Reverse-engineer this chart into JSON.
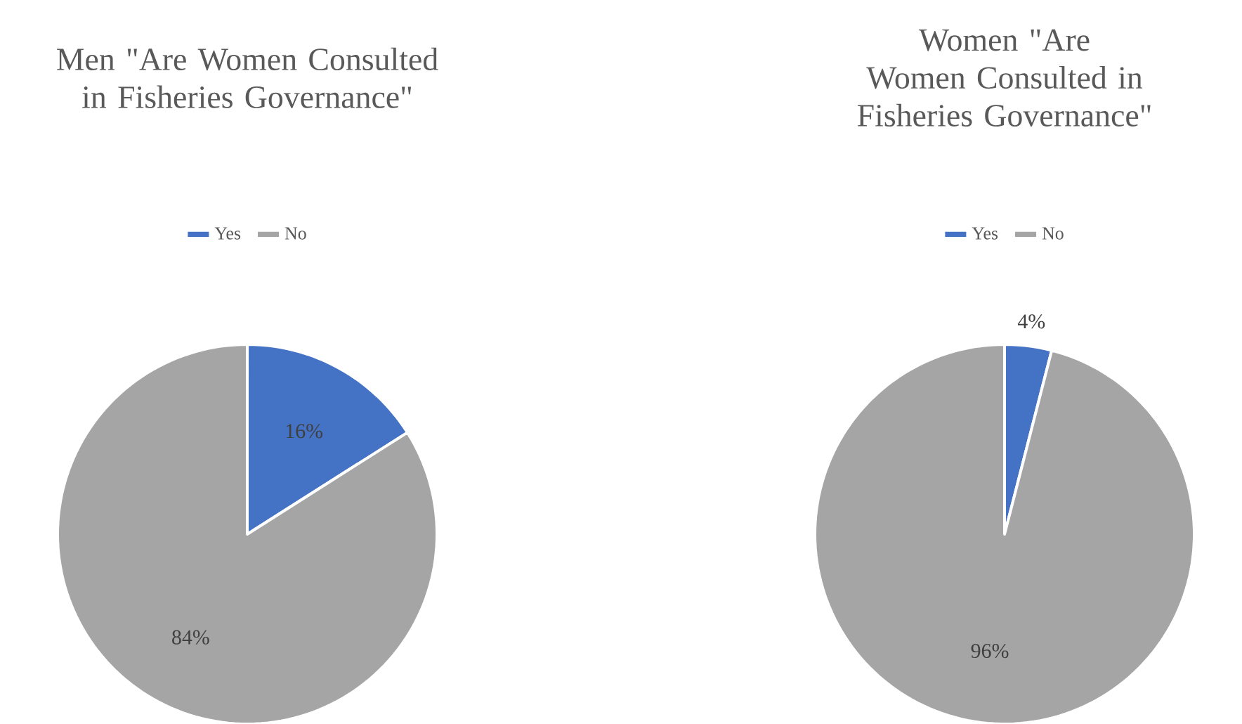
{
  "chart_data": [
    {
      "type": "pie",
      "title": "Men \"Are Women Consulted in Fisheries Governance\"",
      "categories": [
        "Yes",
        "No"
      ],
      "values": [
        16,
        84
      ],
      "colors": [
        "#4472c4",
        "#a5a5a5"
      ],
      "value_labels": [
        "16%",
        "84%"
      ],
      "legend": "top"
    },
    {
      "type": "pie",
      "title": "Women \"Are Women Consulted in Fisheries Governance\"",
      "categories": [
        "Yes",
        "No"
      ],
      "values": [
        4,
        96
      ],
      "colors": [
        "#4472c4",
        "#a5a5a5"
      ],
      "value_labels": [
        "4%",
        "96%"
      ],
      "legend": "top"
    }
  ]
}
